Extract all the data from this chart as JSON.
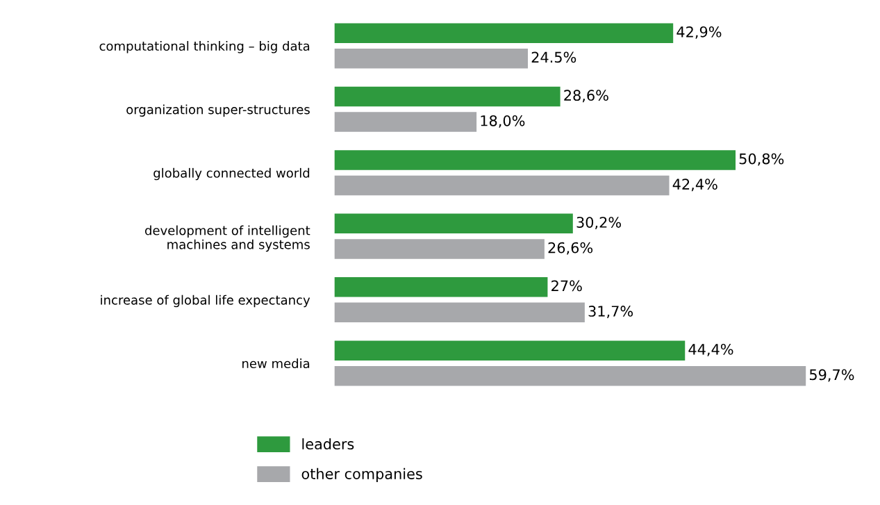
{
  "chart_data": {
    "type": "bar",
    "orientation": "horizontal",
    "categories": [
      "computational thinking – big data",
      "organization super-structures",
      "globally connected world",
      "development of intelligent machines and systems",
      "increase of global life expectancy",
      "new media"
    ],
    "series": [
      {
        "name": "leaders",
        "color": "#2e9a3e",
        "values": [
          42.9,
          28.6,
          50.8,
          30.2,
          27,
          44.4
        ],
        "value_labels": [
          "42,9%",
          "28,6%",
          "50,8%",
          "30,2%",
          "27%",
          "44,4%"
        ]
      },
      {
        "name": "other companies",
        "color": "#a7a8ab",
        "values": [
          24.5,
          18.0,
          42.4,
          26.6,
          31.7,
          59.7
        ],
        "value_labels": [
          "24.5%",
          "18,0%",
          "42,4%",
          "26,6%",
          "31,7%",
          "59,7%"
        ]
      }
    ],
    "legend": "bottom"
  }
}
